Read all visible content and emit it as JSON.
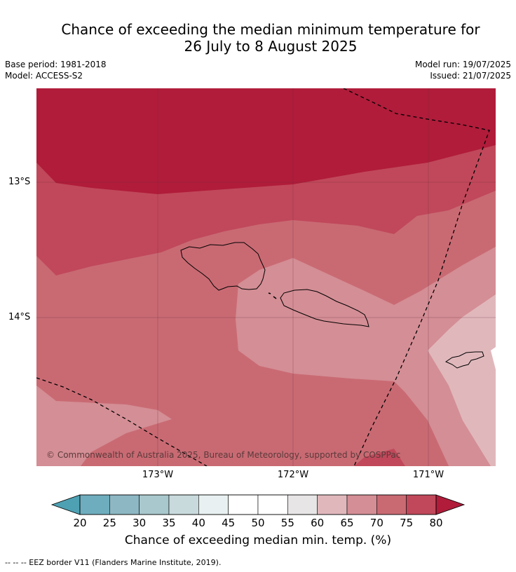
{
  "title_line1": "Chance of exceeding the median minimum temperature for",
  "title_line2": "26 July to 8 August 2025",
  "base_period": "Base period: 1981-2018",
  "model": "Model: ACCESS-S2",
  "model_run": "Model run: 19/07/2025",
  "issued": "Issued: 21/07/2025",
  "latitudes": [
    "13°S",
    "14°S"
  ],
  "longitudes": [
    "173°W",
    "172°W",
    "171°W"
  ],
  "copyright": "© Commonwealth of Australia 2025, Bureau of Meteorology, supported by COSPPac",
  "colorbar": {
    "ticks": [
      "20",
      "25",
      "30",
      "35",
      "40",
      "45",
      "50",
      "55",
      "60",
      "65",
      "70",
      "75",
      "80"
    ],
    "title": "Chance of exceeding median min. temp. (%)",
    "colors": [
      "#4ea1b3",
      "#6eadbd",
      "#8db7c3",
      "#a9c8cd",
      "#c9dadd",
      "#e9f0f1",
      "#ffffff",
      "#ffffff",
      "#e8e5e6",
      "#e0b8bc",
      "#d48e95",
      "#c96a73",
      "#c0485a",
      "#b01c3a"
    ]
  },
  "footnote": "--  --  -- EEZ border V11 (Flanders Marine Institute, 2019).",
  "colors": {
    "band_80": "#b01c3a",
    "band_75": "#c0485a",
    "band_70": "#c96a73",
    "band_65": "#d48e95",
    "band_60": "#e0b8bc"
  }
}
